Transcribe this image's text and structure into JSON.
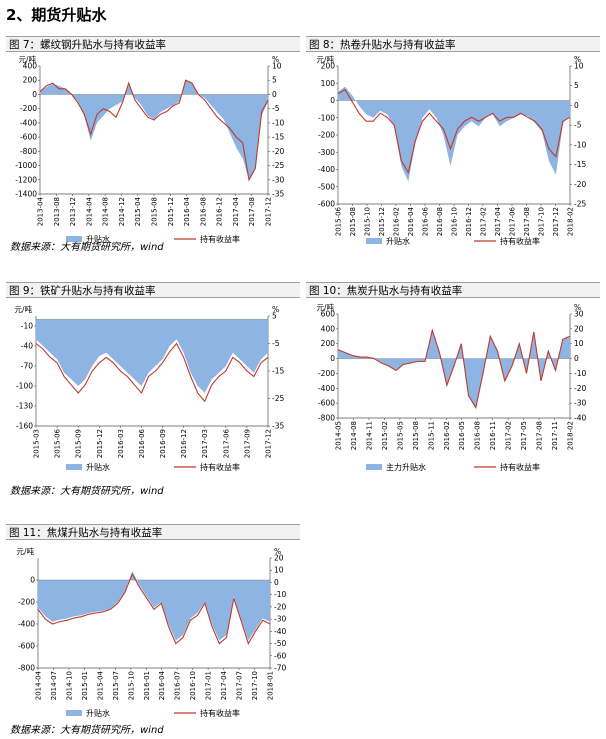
{
  "section": {
    "title": "2、期货升贴水"
  },
  "colors": {
    "area": "#8db4e2",
    "line": "#c0392b"
  },
  "source_text": "数据来源：大有期货研究所，wind",
  "chart_data": [
    {
      "type": "area",
      "title": "图 7：螺纹钢升贴水与持有收益率",
      "left_unit": "元/吨",
      "right_unit": "%",
      "left_ticks": [
        400,
        200,
        0,
        -200,
        -400,
        -600,
        -800,
        -1000,
        -1200,
        -1400
      ],
      "right_ticks": [
        10,
        5,
        0,
        -5,
        -10,
        -15,
        -20,
        -25,
        -30,
        -35
      ],
      "ylim": [
        -1400,
        400
      ],
      "y2lim": [
        -35,
        10
      ],
      "x_labels": [
        "2013-04",
        "2013-08",
        "2013-12",
        "2014-04",
        "2014-08",
        "2014-12",
        "2015-04",
        "2015-08",
        "2015-12",
        "2016-04",
        "2016-08",
        "2016-12",
        "2017-04",
        "2017-08",
        "2017-12"
      ],
      "legend": [
        "升贴水",
        "持有收益率"
      ],
      "series": [
        {
          "name": "升贴水",
          "axis": "left",
          "values": [
            50,
            100,
            150,
            120,
            80,
            0,
            -100,
            -300,
            -650,
            -400,
            -300,
            -200,
            -150,
            -100,
            150,
            -50,
            -150,
            -300,
            -350,
            -250,
            -200,
            -150,
            -100,
            200,
            150,
            0,
            -50,
            -150,
            -250,
            -350,
            -550,
            -750,
            -900,
            -1200,
            -1050,
            -300,
            -100
          ]
        },
        {
          "name": "持有收益率",
          "axis": "right",
          "values": [
            1,
            3,
            4,
            2,
            2,
            0,
            -3,
            -7,
            -14,
            -7,
            -5,
            -6,
            -8,
            -3,
            4,
            -2,
            -5,
            -8,
            -9,
            -7,
            -6,
            -4,
            -3,
            5,
            4,
            0,
            -2,
            -5,
            -8,
            -10,
            -12,
            -15,
            -17,
            -30,
            -26,
            -6,
            -2
          ]
        }
      ]
    },
    {
      "type": "area",
      "title": "图 8：热卷升贴水与持有收益率",
      "left_unit": "元/吨",
      "right_unit": "%",
      "left_ticks": [
        200,
        100,
        0,
        -100,
        -200,
        -300,
        -400,
        -500,
        -600
      ],
      "right_ticks": [
        10,
        5,
        0,
        -5,
        -10,
        -15,
        -20,
        -25
      ],
      "ylim": [
        -600,
        200
      ],
      "y2lim": [
        -25,
        10
      ],
      "x_labels": [
        "2015-06",
        "2015-08",
        "2015-10",
        "2015-12",
        "2016-02",
        "2016-04",
        "2016-06",
        "2016-08",
        "2016-10",
        "2016-12",
        "2017-02",
        "2017-04",
        "2017-06",
        "2017-08",
        "2017-10",
        "2017-12",
        "2018-02"
      ],
      "legend": [
        "升贴水",
        "持有收益率"
      ],
      "series": [
        {
          "name": "升贴水",
          "axis": "left",
          "values": [
            50,
            80,
            30,
            -30,
            -80,
            -100,
            -60,
            -80,
            -150,
            -380,
            -470,
            -250,
            -100,
            -50,
            -100,
            -200,
            -380,
            -200,
            -150,
            -120,
            -150,
            -100,
            -80,
            -150,
            -120,
            -100,
            -80,
            -90,
            -130,
            -180,
            -350,
            -430,
            -130,
            -90
          ]
        },
        {
          "name": "持有收益率",
          "axis": "right",
          "values": [
            3,
            4,
            1,
            -2,
            -4,
            -4,
            -2,
            -3,
            -5,
            -14,
            -17,
            -9,
            -4,
            -2,
            -4,
            -6,
            -11,
            -6,
            -4,
            -3,
            -4,
            -3,
            -2,
            -4,
            -3,
            -3,
            -2,
            -3,
            -4,
            -6,
            -11,
            -13,
            -4,
            -3
          ]
        }
      ]
    },
    {
      "type": "area",
      "title": "图 9：铁矿升贴水与持有收益率",
      "left_unit": "元/吨",
      "right_unit": "%",
      "left_ticks": [
        -10,
        -40,
        -70,
        -100,
        -130,
        -160
      ],
      "right_ticks": [
        5,
        -5,
        -15,
        -25,
        -35
      ],
      "ylim": [
        -160,
        5
      ],
      "y2lim": [
        -35,
        5
      ],
      "x_labels": [
        "2015-03",
        "2015-06",
        "2015-09",
        "2015-12",
        "2016-03",
        "2016-06",
        "2016-09",
        "2016-12",
        "2017-03",
        "2017-06",
        "2017-09",
        "2017-12"
      ],
      "legend": [
        "升贴水",
        "持有收益率"
      ],
      "series": [
        {
          "name": "升贴水",
          "axis": "left",
          "values": [
            -30,
            -40,
            -50,
            -60,
            -80,
            -90,
            -100,
            -90,
            -70,
            -55,
            -50,
            -60,
            -70,
            -80,
            -90,
            -100,
            -80,
            -70,
            -60,
            -40,
            -30,
            -50,
            -80,
            -100,
            -110,
            -90,
            -80,
            -70,
            -50,
            -60,
            -70,
            -80,
            -60,
            -50
          ]
        },
        {
          "name": "持有收益率",
          "axis": "right",
          "values": [
            -5,
            -7,
            -10,
            -12,
            -17,
            -20,
            -23,
            -20,
            -15,
            -12,
            -10,
            -12,
            -15,
            -17,
            -20,
            -23,
            -17,
            -15,
            -12,
            -8,
            -5,
            -10,
            -17,
            -23,
            -26,
            -20,
            -17,
            -15,
            -10,
            -12,
            -15,
            -17,
            -12,
            -10
          ]
        }
      ]
    },
    {
      "type": "area",
      "title": "图 10：焦炭升贴水与持有收益率",
      "left_unit": "元/吨",
      "right_unit": "%",
      "left_ticks": [
        600,
        400,
        200,
        0,
        -200,
        -400,
        -600,
        -800
      ],
      "right_ticks": [
        30,
        20,
        10,
        0,
        -10,
        -20,
        -30,
        -40
      ],
      "ylim": [
        -800,
        600
      ],
      "y2lim": [
        -40,
        30
      ],
      "x_labels": [
        "2014-05",
        "2014-08",
        "2014-11",
        "2015-02",
        "2015-05",
        "2015-08",
        "2015-11",
        "2016-02",
        "2016-05",
        "2016-08",
        "2016-11",
        "2017-02",
        "2017-05",
        "2017-08",
        "2017-11",
        "2018-02"
      ],
      "legend": [
        "主力升贴水",
        "持有收益率"
      ],
      "series": [
        {
          "name": "主力升贴水",
          "axis": "left",
          "values": [
            120,
            80,
            40,
            30,
            20,
            10,
            -50,
            -100,
            -150,
            -80,
            -60,
            -40,
            -30,
            380,
            80,
            -350,
            -100,
            200,
            -500,
            -650,
            -200,
            300,
            100,
            -300,
            -100,
            200,
            -200,
            350,
            -300,
            100,
            -150,
            250,
            300
          ]
        },
        {
          "name": "持有收益率",
          "axis": "right",
          "values": [
            6,
            4,
            2,
            1,
            1,
            0,
            -3,
            -5,
            -8,
            -4,
            -3,
            -2,
            -2,
            19,
            4,
            -18,
            -5,
            10,
            -25,
            -33,
            -10,
            15,
            5,
            -15,
            -5,
            10,
            -10,
            18,
            -15,
            5,
            -8,
            13,
            15
          ]
        }
      ]
    },
    {
      "type": "area",
      "title": "图 11：焦煤升贴水与持有收益率",
      "left_unit": "元/吨",
      "right_unit": "%",
      "left_ticks": [
        0,
        -200,
        -400,
        -600,
        -800
      ],
      "right_ticks": [
        20,
        10,
        0,
        -10,
        -20,
        -30,
        -40,
        -50,
        -60,
        -70
      ],
      "ylim": [
        -800,
        200
      ],
      "y2lim": [
        -70,
        20
      ],
      "x_labels": [
        "2014-04",
        "2014-07",
        "2014-10",
        "2015-01",
        "2015-04",
        "2015-07",
        "2015-10",
        "2016-01",
        "2016-04",
        "2016-07",
        "2016-10",
        "2017-01",
        "2017-04",
        "2017-07",
        "2017-10",
        "2018-01"
      ],
      "legend": [
        "升贴水",
        "持有收益率"
      ],
      "series": [
        {
          "name": "升贴水",
          "axis": "left",
          "values": [
            -250,
            -330,
            -380,
            -360,
            -350,
            -330,
            -320,
            -300,
            -290,
            -280,
            -260,
            -200,
            -100,
            80,
            -50,
            -150,
            -250,
            -200,
            -400,
            -550,
            -500,
            -350,
            -300,
            -200,
            -400,
            -550,
            -500,
            -150,
            -350,
            -550,
            -450,
            -350,
            -380
          ]
        },
        {
          "name": "持有收益率",
          "axis": "right",
          "values": [
            -22,
            -30,
            -34,
            -32,
            -31,
            -29,
            -28,
            -26,
            -25,
            -24,
            -22,
            -17,
            -8,
            7,
            -4,
            -13,
            -22,
            -17,
            -36,
            -50,
            -45,
            -31,
            -27,
            -17,
            -36,
            -50,
            -45,
            -13,
            -31,
            -50,
            -40,
            -31,
            -34
          ]
        }
      ]
    }
  ]
}
